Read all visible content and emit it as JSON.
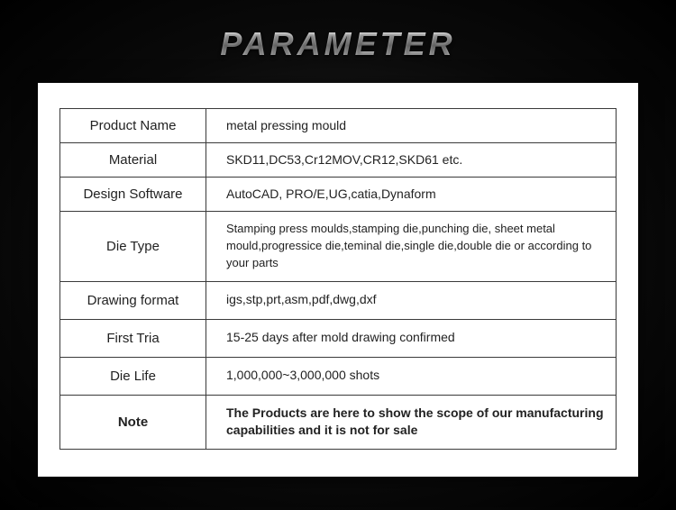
{
  "title": "PARAMETER",
  "rows": [
    {
      "label": "Product Name",
      "value": "metal pressing mould"
    },
    {
      "label": "Material",
      "value": "SKD11,DC53,Cr12MOV,CR12,SKD61 etc."
    },
    {
      "label": "Design Software",
      "value": "AutoCAD, PRO/E,UG,catia,Dynaform"
    },
    {
      "label": "Die Type",
      "value": "Stamping press moulds,stamping die,punching die, sheet metal mould,progressice die,teminal die,single die,double die or according to your parts"
    },
    {
      "label": "Drawing format",
      "value": "igs,stp,prt,asm,pdf,dwg,dxf"
    },
    {
      "label": "First Tria",
      "value": "15-25 days after mold drawing confirmed"
    },
    {
      "label": "Die Life",
      "value": "1,000,000~3,000,000 shots"
    },
    {
      "label": "Note",
      "value": "The Products are here to show the scope of our manufacturing capabilities and it is not for sale"
    }
  ],
  "style": {
    "page_bg": "radial-gradient #2a2a2a to #000000",
    "panel_bg": "#ffffff",
    "border_color": "#3a3a3a",
    "text_color": "#222222",
    "title_gradient": [
      "#ffffff",
      "#888888",
      "#ffffff"
    ],
    "title_fontsize": 36,
    "label_fontsize": 15,
    "value_fontsize": 14,
    "label_col_width": 162
  }
}
